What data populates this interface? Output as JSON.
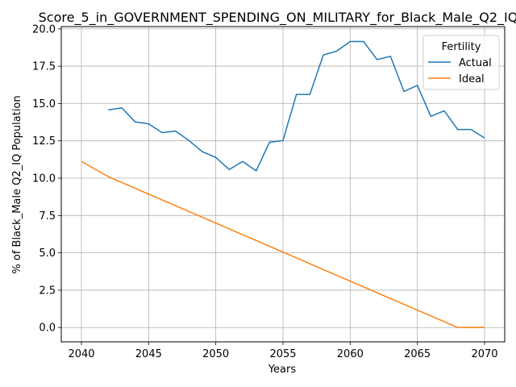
{
  "chart_data": {
    "type": "line",
    "title": "Score_5_in_GOVERNMENT_SPENDING_ON_MILITARY_for_Black_Male_Q2_IQ",
    "xlabel": "Years",
    "ylabel": "% of Black_Male Q2_IQ Population",
    "xlim": [
      2038.5,
      2071.5
    ],
    "ylim": [
      -0.96,
      20.15
    ],
    "xticks": [
      2040,
      2045,
      2050,
      2055,
      2060,
      2065,
      2070
    ],
    "yticks": [
      0.0,
      2.5,
      5.0,
      7.5,
      10.0,
      12.5,
      15.0,
      17.5,
      20.0
    ],
    "xtick_labels": [
      "2040",
      "2045",
      "2050",
      "2055",
      "2060",
      "2065",
      "2070"
    ],
    "ytick_labels": [
      "0.0",
      "2.5",
      "5.0",
      "7.5",
      "10.0",
      "12.5",
      "15.0",
      "17.5",
      "20.0"
    ],
    "grid": true,
    "legend": {
      "title": "Fertility",
      "placement": "top-right"
    },
    "series": [
      {
        "name": "Actual",
        "color": "#1f77b4",
        "x": [
          2042,
          2043,
          2044,
          2045,
          2046,
          2047,
          2048,
          2049,
          2050,
          2051,
          2052,
          2053,
          2054,
          2055,
          2056,
          2057,
          2058,
          2059,
          2060,
          2061,
          2062,
          2063,
          2064,
          2065,
          2066,
          2067,
          2068,
          2069,
          2070
        ],
        "y": [
          14.57,
          14.71,
          13.77,
          13.64,
          13.05,
          13.16,
          12.52,
          11.77,
          11.39,
          10.58,
          11.12,
          10.49,
          12.41,
          12.52,
          15.61,
          15.61,
          18.25,
          18.51,
          19.15,
          19.15,
          17.94,
          18.16,
          15.81,
          16.21,
          14.14,
          14.51,
          13.26,
          13.26,
          12.69
        ]
      },
      {
        "name": "Ideal",
        "color": "#ff7f0e",
        "x": [
          2040,
          2042,
          2068,
          2070
        ],
        "y": [
          11.12,
          10.1,
          0.0,
          0.0
        ]
      }
    ]
  }
}
